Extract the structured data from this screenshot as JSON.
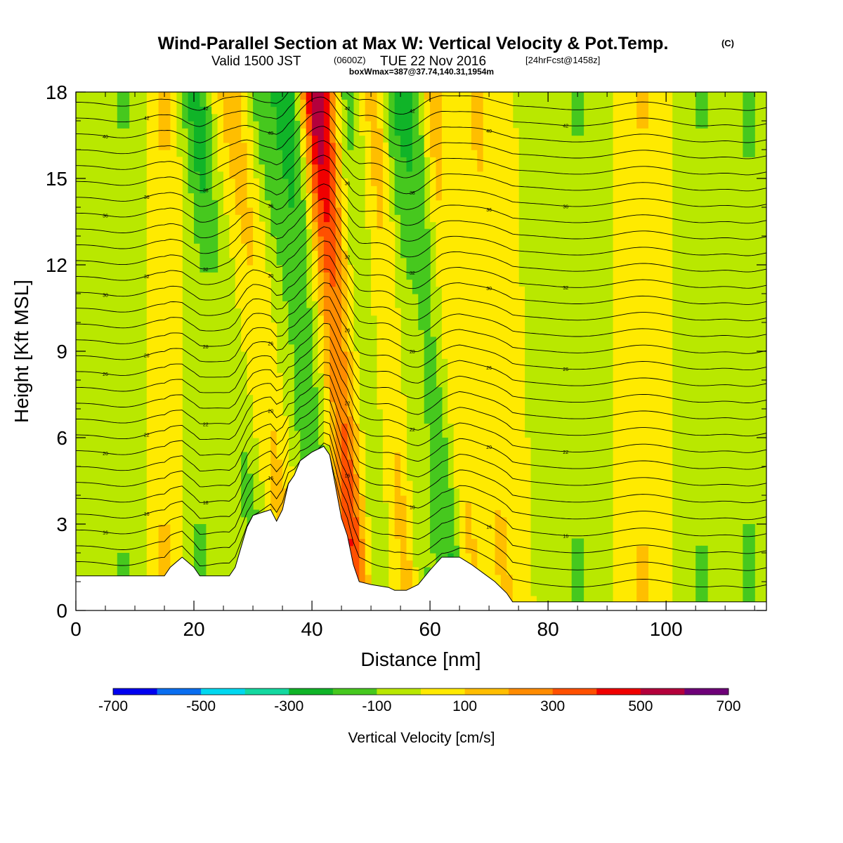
{
  "titles": {
    "main": "Wind-Parallel Section at Max W: Vertical Velocity & Pot.Temp.",
    "main_mark": "(C)",
    "valid_a": "Valid 1500 JST",
    "valid_b": "(0600Z)",
    "valid_c": "TUE 22 Nov 2016",
    "valid_d": "[24hrFcst@1458z]",
    "boxinfo": "boxWmax=387@37.74,140.31,1954m"
  },
  "chart_data": {
    "type": "heatmap",
    "xlabel": "Distance [nm]",
    "ylabel": "Height [Kft MSL]",
    "xlim": [
      0,
      117
    ],
    "ylim": [
      0,
      18
    ],
    "x_ticks": [
      "0",
      "20",
      "40",
      "60",
      "80",
      "100"
    ],
    "y_ticks": [
      "0",
      "3",
      "6",
      "9",
      "12",
      "15",
      "18"
    ],
    "colorbar": {
      "label": "Vertical Velocity [cm/s]",
      "tick_labels": [
        "-700",
        "-500",
        "-300",
        "-100",
        "100",
        "300",
        "500",
        "700"
      ],
      "bounds": [
        -700,
        700
      ],
      "colors": [
        "#0000f0",
        "#0a6ef0",
        "#00d8f0",
        "#14d8a0",
        "#10b428",
        "#46c81e",
        "#b9e800",
        "#ffea00",
        "#ffbe00",
        "#ff8c00",
        "#ff5000",
        "#f00000",
        "#b4003c",
        "#6e0078"
      ]
    },
    "terrain_profile": [
      [
        0,
        1.2
      ],
      [
        3,
        1.2
      ],
      [
        6,
        1.2
      ],
      [
        9,
        1.2
      ],
      [
        12,
        1.2
      ],
      [
        15,
        1.2
      ],
      [
        16,
        1.5
      ],
      [
        18,
        1.85
      ],
      [
        20,
        1.5
      ],
      [
        21,
        1.2
      ],
      [
        24,
        1.2
      ],
      [
        26,
        1.2
      ],
      [
        27,
        1.5
      ],
      [
        28,
        2.2
      ],
      [
        29,
        2.9
      ],
      [
        30,
        3.3
      ],
      [
        33,
        3.5
      ],
      [
        34,
        3.1
      ],
      [
        35,
        3.5
      ],
      [
        36,
        4.4
      ],
      [
        37,
        4.7
      ],
      [
        38,
        5.2
      ],
      [
        40,
        5.5
      ],
      [
        42,
        5.7
      ],
      [
        43,
        5.4
      ],
      [
        44,
        4.3
      ],
      [
        45,
        3.2
      ],
      [
        46,
        2.6
      ],
      [
        47,
        1.6
      ],
      [
        48,
        1.0
      ],
      [
        50,
        0.9
      ],
      [
        53,
        0.8
      ],
      [
        54,
        0.7
      ],
      [
        56,
        0.7
      ],
      [
        58,
        0.9
      ],
      [
        60,
        1.4
      ],
      [
        62,
        1.85
      ],
      [
        65,
        1.85
      ],
      [
        67,
        1.6
      ],
      [
        69,
        1.3
      ],
      [
        71,
        1.0
      ],
      [
        73,
        0.6
      ],
      [
        74,
        0.3
      ],
      [
        76,
        0.3
      ],
      [
        80,
        0.3
      ],
      [
        90,
        0.3
      ],
      [
        100,
        0.3
      ],
      [
        108,
        0.3
      ],
      [
        117,
        0.3
      ]
    ],
    "field_features": [
      {
        "x": 46,
        "w": 3.5,
        "tilt": -0.35,
        "value": 650
      },
      {
        "x": 43.5,
        "w": 3,
        "tilt": -0.5,
        "value": -380
      },
      {
        "x": 49.5,
        "w": 2.5,
        "tilt": -0.3,
        "value": -220
      },
      {
        "x": 63,
        "w": 2.8,
        "tilt": -0.45,
        "value": -240
      },
      {
        "x": 66,
        "w": 2.2,
        "tilt": -0.4,
        "value": 180
      },
      {
        "x": 35,
        "w": 2.5,
        "tilt": -0.6,
        "value": 170
      },
      {
        "x": 30,
        "w": 2.5,
        "tilt": -0.7,
        "value": -150
      },
      {
        "x": 55.5,
        "w": 2,
        "tilt": -0.35,
        "value": 160
      },
      {
        "x": 40,
        "w": 2.2,
        "tilt": -0.6,
        "value": -140
      },
      {
        "x": 15,
        "w": 2,
        "tilt": 0,
        "value": 120
      },
      {
        "x": 21,
        "w": 2,
        "tilt": 0,
        "value": -120
      },
      {
        "x": 8,
        "w": 2.5,
        "tilt": 0,
        "value": -110
      },
      {
        "x": 58,
        "w": 1.8,
        "tilt": -0.3,
        "value": -120
      },
      {
        "x": 72,
        "w": 2.5,
        "tilt": -0.3,
        "value": 120
      },
      {
        "x": 85,
        "w": 4,
        "tilt": 0,
        "value": -110
      },
      {
        "x": 96,
        "w": 3,
        "tilt": 0,
        "value": 110
      },
      {
        "x": 106,
        "w": 3,
        "tilt": 0,
        "value": -110
      },
      {
        "x": 114,
        "w": 2,
        "tilt": 0,
        "value": -120
      }
    ],
    "isentropes": {
      "start_kft": 1.7,
      "spacing_kft": 0.55,
      "count": 30
    },
    "contour_labels": [
      "14",
      "16",
      "18",
      "20",
      "22",
      "24",
      "26",
      "28",
      "30",
      "32",
      "34",
      "36",
      "38",
      "40",
      "42"
    ]
  }
}
